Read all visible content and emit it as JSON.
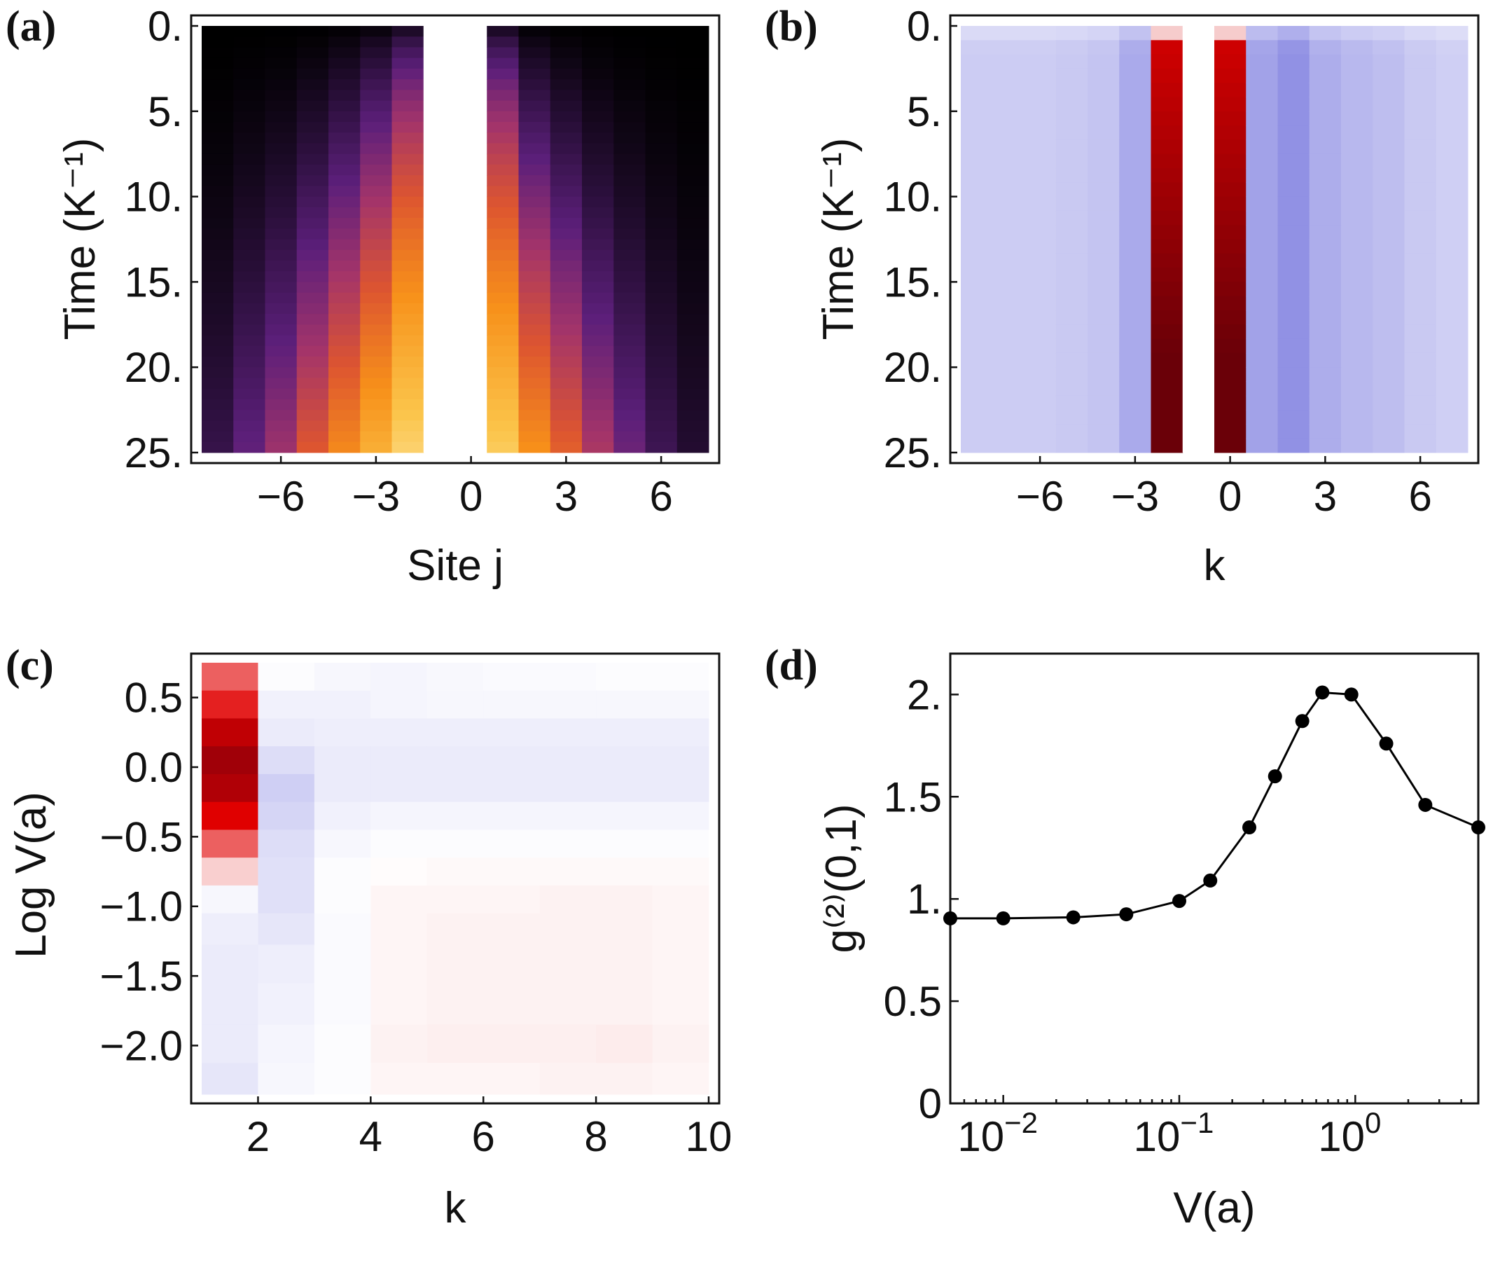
{
  "chart_data": [
    {
      "panel": "(a)",
      "type": "heatmap",
      "xlabel": "Site j",
      "ylabel": "Time (K⁻¹)",
      "xrange": [
        -8,
        8
      ],
      "yrange": [
        0,
        25
      ],
      "xticks": [
        "−6",
        "−3",
        "0",
        "3",
        "6"
      ],
      "yticks": [
        "0.",
        "5.",
        "10.",
        "15.",
        "20.",
        "25."
      ],
      "sites": [
        -7,
        -6,
        -5,
        -4,
        -3,
        -2,
        -1,
        0,
        1,
        2,
        3,
        4,
        5,
        6,
        7,
        8
      ],
      "blank_columns": [
        0,
        1
      ],
      "colormap": [
        "#000000",
        "#2a0f3a",
        "#5c1f7a",
        "#a3346a",
        "#dd5530",
        "#f7901a",
        "#fbc44a",
        "#fff3c8"
      ],
      "column_profile": [
        0.18,
        0.3,
        0.42,
        0.58,
        0.7,
        0.8,
        0.9,
        1.0,
        1.0,
        0.88,
        0.72,
        0.6,
        0.45,
        0.32,
        0.2,
        0.12
      ],
      "growth_exponent": [
        1.6,
        1.4,
        1.3,
        1.1,
        0.9,
        0.7,
        0.5,
        0.3,
        0.3,
        0.5,
        0.8,
        1.0,
        1.2,
        1.35,
        1.5,
        1.7
      ]
    },
    {
      "panel": "(b)",
      "type": "heatmap",
      "xlabel": "k",
      "ylabel": "Time (K⁻¹)",
      "xrange": [
        -8,
        8
      ],
      "yrange": [
        0,
        25
      ],
      "xticks": [
        "−6",
        "−3",
        "0",
        "3",
        "6"
      ],
      "yticks": [
        "0.",
        "5.",
        "10.",
        "15.",
        "20.",
        "25."
      ],
      "k": [
        -7,
        -6,
        -5,
        -4,
        -3,
        -2,
        -1,
        0,
        1,
        2,
        3,
        4,
        5,
        6,
        7,
        8
      ],
      "blank_columns": [
        0
      ],
      "negative_color": "#5555d6",
      "positive_color": "#d40000",
      "deep_positive_color": "#6a0008",
      "column_value": [
        -0.3,
        -0.3,
        -0.3,
        -0.32,
        -0.35,
        -0.5,
        1.0,
        0,
        1.0,
        -0.55,
        -0.65,
        -0.48,
        -0.42,
        -0.38,
        -0.32,
        -0.28
      ]
    },
    {
      "panel": "(c)",
      "type": "heatmap",
      "xlabel": "k",
      "ylabel": "Log V(a)",
      "xrange": [
        1,
        10
      ],
      "yrange": [
        -2.35,
        0.75
      ],
      "xticks": [
        "2",
        "4",
        "6",
        "8",
        "10"
      ],
      "yticks": [
        "0.5",
        "0.0",
        "−0.5",
        "−1.0",
        "−1.5",
        "−2.0"
      ],
      "ytick_values": [
        0.5,
        0.0,
        -0.5,
        -1.0,
        -1.5,
        -2.0
      ],
      "k": [
        1,
        2,
        3,
        4,
        5,
        6,
        7,
        8,
        9
      ],
      "logV_rows": [
        0.65,
        0.45,
        0.25,
        0.05,
        -0.15,
        -0.35,
        -0.55,
        -0.75,
        -0.95,
        -1.15,
        -1.4,
        -1.7,
        -2.0,
        -2.25
      ],
      "values": [
        [
          0.5,
          -0.02,
          -0.05,
          -0.06,
          -0.04,
          -0.03,
          -0.03,
          -0.02,
          -0.02
        ],
        [
          0.7,
          -0.08,
          -0.08,
          -0.06,
          -0.05,
          -0.05,
          -0.05,
          -0.05,
          -0.05
        ],
        [
          0.9,
          -0.12,
          -0.1,
          -0.1,
          -0.1,
          -0.1,
          -0.1,
          -0.1,
          -0.1
        ],
        [
          1.0,
          -0.2,
          -0.12,
          -0.12,
          -0.12,
          -0.12,
          -0.12,
          -0.12,
          -0.12
        ],
        [
          0.95,
          -0.28,
          -0.12,
          -0.12,
          -0.12,
          -0.12,
          -0.12,
          -0.12,
          -0.12
        ],
        [
          0.8,
          -0.25,
          -0.08,
          -0.06,
          -0.06,
          -0.06,
          -0.06,
          -0.06,
          -0.06
        ],
        [
          0.5,
          -0.2,
          -0.05,
          -0.02,
          -0.02,
          -0.02,
          -0.02,
          -0.02,
          -0.02
        ],
        [
          0.15,
          -0.18,
          -0.02,
          0.01,
          0.02,
          0.02,
          0.02,
          0.02,
          0.02
        ],
        [
          -0.05,
          -0.18,
          -0.02,
          0.03,
          0.03,
          0.03,
          0.04,
          0.04,
          0.03
        ],
        [
          -0.1,
          -0.15,
          -0.03,
          0.03,
          0.04,
          0.04,
          0.04,
          0.04,
          0.03
        ],
        [
          -0.12,
          -0.1,
          -0.03,
          0.03,
          0.04,
          0.04,
          0.04,
          0.04,
          0.03
        ],
        [
          -0.12,
          -0.08,
          -0.03,
          0.03,
          0.04,
          0.04,
          0.04,
          0.04,
          0.03
        ],
        [
          -0.12,
          -0.06,
          -0.02,
          0.04,
          0.05,
          0.05,
          0.05,
          0.06,
          0.04
        ],
        [
          -0.15,
          -0.05,
          -0.02,
          0.03,
          0.03,
          0.03,
          0.04,
          0.04,
          0.03
        ]
      ],
      "negative_color": "#5555d6",
      "positive_color": "#e00000",
      "deep_positive_color": "#a00008"
    },
    {
      "panel": "(d)",
      "type": "line",
      "xlabel": "V(a)",
      "ylabel": "g⁽²⁾(0,1)",
      "xscale": "log",
      "xlim": [
        0.005,
        5
      ],
      "ylim": [
        0,
        2.2
      ],
      "xticks": [
        {
          "base": "10",
          "exp": "−2",
          "value": 0.01
        },
        {
          "base": "10",
          "exp": "−1",
          "value": 0.1
        },
        {
          "base": "10",
          "exp": "0",
          "value": 1
        }
      ],
      "yticks": [
        "0",
        "0.5",
        "1.",
        "1.5",
        "2."
      ],
      "ytick_values": [
        0,
        0.5,
        1.0,
        1.5,
        2.0
      ],
      "x": [
        0.005,
        0.01,
        0.025,
        0.05,
        0.1,
        0.15,
        0.25,
        0.35,
        0.5,
        0.65,
        0.95,
        1.5,
        2.5,
        5.0
      ],
      "y": [
        0.905,
        0.905,
        0.91,
        0.925,
        0.99,
        1.09,
        1.35,
        1.6,
        1.87,
        2.01,
        2.0,
        1.76,
        1.46,
        1.35
      ],
      "color": "#000000"
    }
  ]
}
